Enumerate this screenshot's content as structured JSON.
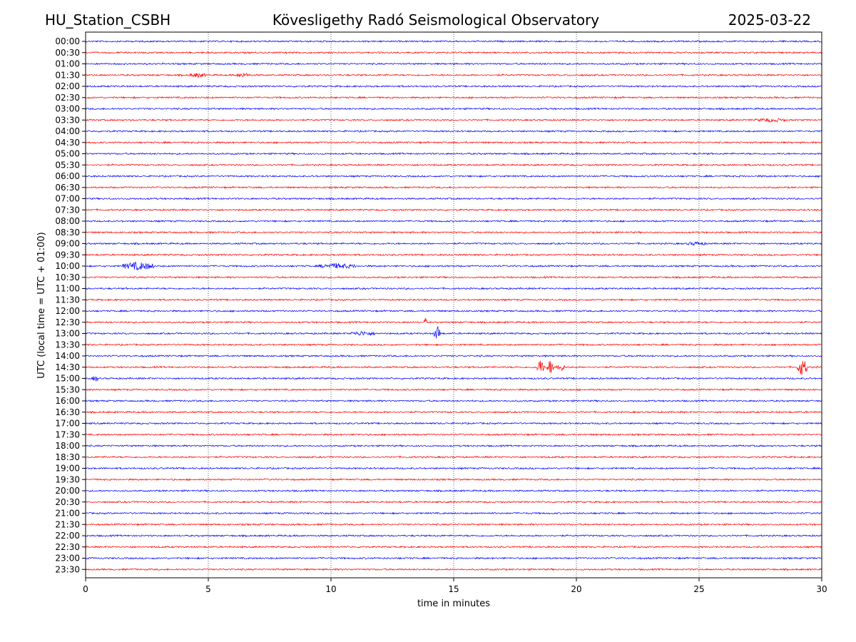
{
  "header": {
    "station": "HU_Station_CSBH",
    "observatory": "Kövesligethy Radó Seismological Observatory",
    "date": "2025-03-22"
  },
  "chart_data": {
    "type": "line",
    "subtype": "helicorder",
    "xlabel": "time in minutes",
    "ylabel": "UTC (local time = UTC + 01:00)",
    "xlim": [
      0,
      30
    ],
    "x_ticks": [
      "0",
      "5",
      "10",
      "15",
      "20",
      "25",
      "30"
    ],
    "grid": "vertical dotted lines at 5-minute intervals",
    "row_labels": [
      "00:00",
      "00:30",
      "01:00",
      "01:30",
      "02:00",
      "02:30",
      "03:00",
      "03:30",
      "04:00",
      "04:30",
      "05:00",
      "05:30",
      "06:00",
      "06:30",
      "07:00",
      "07:30",
      "08:00",
      "08:30",
      "09:00",
      "09:30",
      "10:00",
      "10:30",
      "11:00",
      "11:30",
      "12:00",
      "12:30",
      "13:00",
      "13:30",
      "14:00",
      "14:30",
      "15:00",
      "15:30",
      "16:00",
      "16:30",
      "17:00",
      "17:30",
      "18:00",
      "18:30",
      "19:00",
      "19:30",
      "20:00",
      "20:30",
      "21:00",
      "21:30",
      "22:00",
      "22:30",
      "23:00",
      "23:30"
    ],
    "trace_colors": [
      "#0000ff",
      "#ff0000"
    ],
    "events": [
      {
        "row": "01:30",
        "start_min": 4.2,
        "end_min": 4.9,
        "level": 0.5
      },
      {
        "row": "01:30",
        "start_min": 6.1,
        "end_min": 6.7,
        "level": 0.5
      },
      {
        "row": "03:30",
        "start_min": 27.3,
        "end_min": 28.5,
        "level": 0.4
      },
      {
        "row": "09:00",
        "start_min": 24.5,
        "end_min": 25.3,
        "level": 0.35
      },
      {
        "row": "10:00",
        "start_min": 1.5,
        "end_min": 2.8,
        "level": 1.0
      },
      {
        "row": "10:00",
        "start_min": 9.5,
        "end_min": 11.0,
        "level": 0.6
      },
      {
        "row": "12:30",
        "start_min": 13.8,
        "end_min": 13.9,
        "level": 1.2
      },
      {
        "row": "13:00",
        "start_min": 10.8,
        "end_min": 11.8,
        "level": 0.5
      },
      {
        "row": "13:00",
        "start_min": 14.2,
        "end_min": 14.5,
        "level": 2.0
      },
      {
        "row": "14:30",
        "start_min": 18.4,
        "end_min": 18.7,
        "level": 2.2
      },
      {
        "row": "14:30",
        "start_min": 18.8,
        "end_min": 19.1,
        "level": 2.0
      },
      {
        "row": "14:30",
        "start_min": 19.2,
        "end_min": 19.5,
        "level": 1.2
      },
      {
        "row": "14:30",
        "start_min": 29.0,
        "end_min": 29.4,
        "level": 2.4
      },
      {
        "row": "15:00",
        "start_min": 0.3,
        "end_min": 0.5,
        "level": 0.8
      }
    ]
  }
}
